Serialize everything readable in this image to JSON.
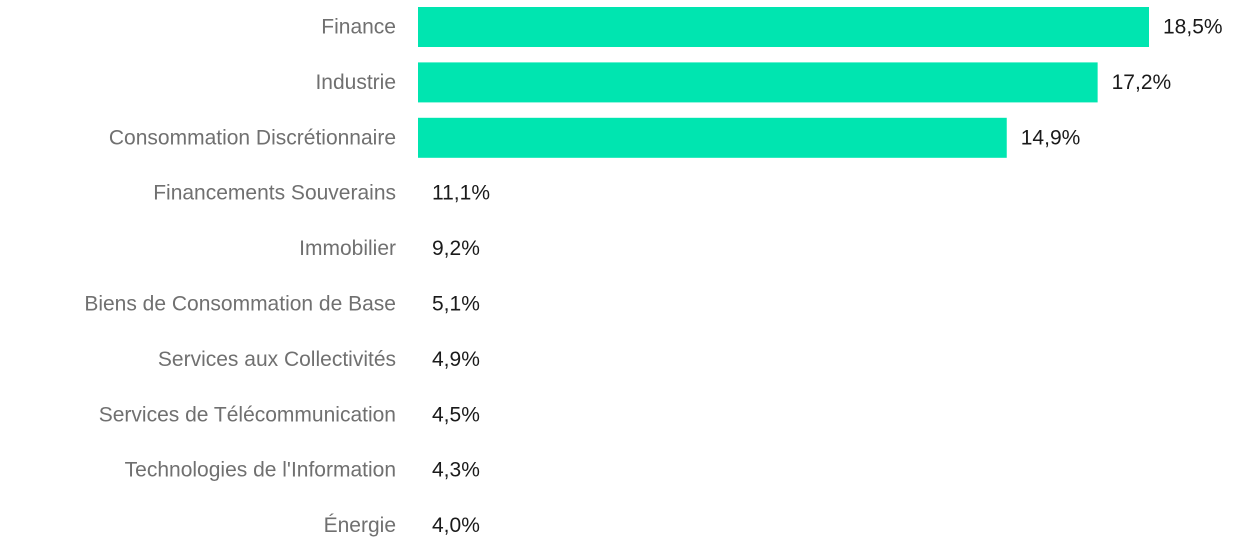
{
  "chart_data": {
    "type": "bar",
    "orientation": "horizontal",
    "categories": [
      "Finance",
      "Industrie",
      "Consommation Discrétionnaire",
      "Financements Souverains",
      "Immobilier",
      "Biens de Consommation de Base",
      "Services aux Collectivités",
      "Services de Télécommunication",
      "Technologies de l'Information",
      "Énergie"
    ],
    "values": [
      18.5,
      17.2,
      14.9,
      11.1,
      9.2,
      5.1,
      4.9,
      4.5,
      4.3,
      4.0
    ],
    "value_labels": [
      "18,5%",
      "17,2%",
      "14,9%",
      "11,1%",
      "9,2%",
      "5,1%",
      "4,9%",
      "4,5%",
      "4,3%",
      "4,0%"
    ],
    "unit": "%",
    "bar_color": "#00E5B0",
    "category_label_color": "#707070",
    "value_label_color": "#1a1a1a",
    "bars_visible": [
      true,
      true,
      true,
      false,
      false,
      false,
      false,
      false,
      false,
      false
    ],
    "grid": false,
    "legend": "none"
  }
}
